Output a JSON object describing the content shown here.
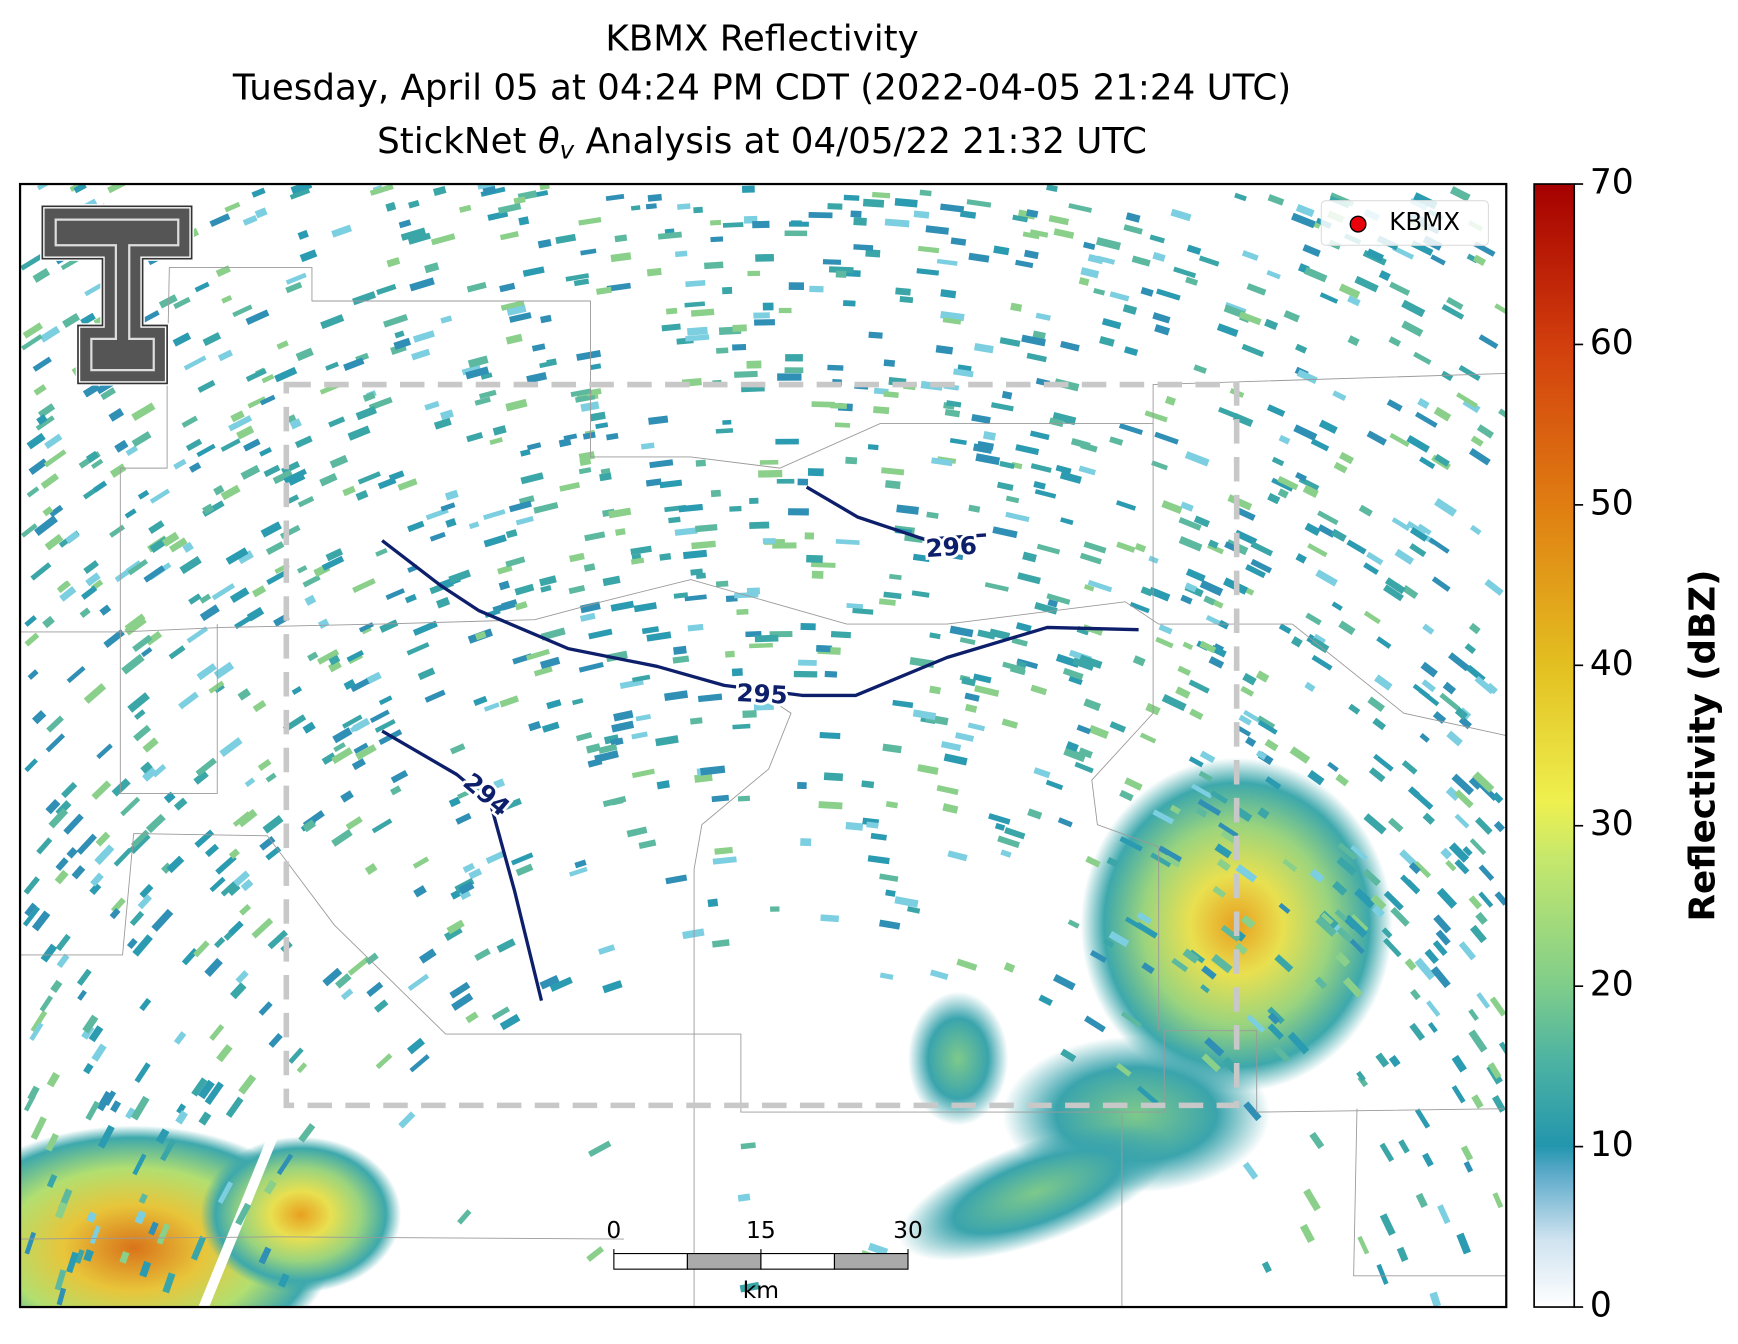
{
  "header": {
    "title": "KBMX Reflectivity",
    "subtitle": "Tuesday, April 05 at 04:24 PM CDT (2022-04-05 21:24 UTC)",
    "analysis_line": {
      "before": "StickNet",
      "symbol": "θ",
      "subscript": "v",
      "after": "Analysis at 04/05/22 21:32 UTC"
    }
  },
  "map": {
    "legend": {
      "marker_label": "KBMX",
      "marker_color": "#e8000b"
    },
    "contours": [
      {
        "label": "294"
      },
      {
        "label": "295"
      },
      {
        "label": "296"
      }
    ],
    "contour_color": "#0d1f6b"
  },
  "scale_bar": {
    "ticks": [
      0,
      15,
      30
    ],
    "lim": [
      0,
      30
    ],
    "unit": "km"
  },
  "colorbar": {
    "label": "Reflectivity (dBZ)",
    "lim": [
      0,
      70
    ],
    "ticks": [
      0,
      10,
      20,
      30,
      40,
      50,
      60,
      70
    ]
  }
}
